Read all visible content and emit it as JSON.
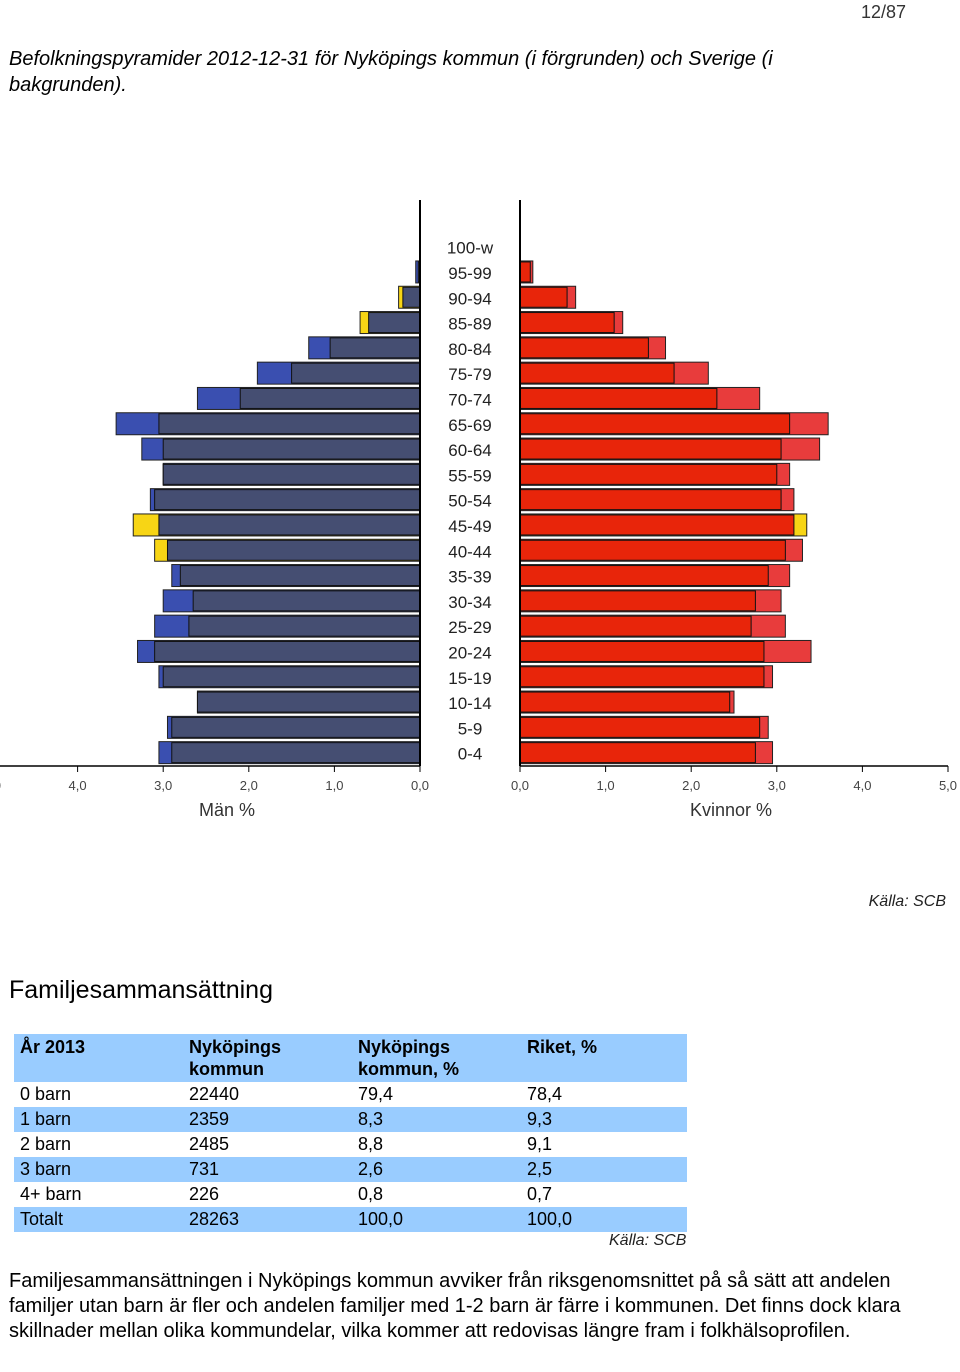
{
  "page_number": "12/87",
  "intro_text": "Befolkningspyramider 2012-12-31 för Nyköpings kommun (i förgrunden) och Sverige (i bakgrunden).",
  "chart_source": "Källa: SCB",
  "colors": {
    "men_kommun": "#454e72",
    "men_riket": "#3a4fb0",
    "women_kommun": "#e8250a",
    "women_riket": "#e83c3c",
    "kommun_larger": "#f7d515",
    "table_shade": "#99ccff"
  },
  "chart_data": {
    "type": "bar",
    "orientation": "horizontal-pyramid",
    "categories": [
      "100-w",
      "95-99",
      "90-94",
      "85-89",
      "80-84",
      "75-79",
      "70-74",
      "65-69",
      "60-64",
      "55-59",
      "50-54",
      "45-49",
      "40-44",
      "35-39",
      "30-34",
      "25-29",
      "20-24",
      "15-19",
      "10-14",
      "5-9",
      "0-4"
    ],
    "series": [
      {
        "side": "men",
        "layer": "kommun",
        "values": [
          0.0,
          0.02,
          0.25,
          0.7,
          1.05,
          1.5,
          2.1,
          3.05,
          3.0,
          3.0,
          3.1,
          3.35,
          3.1,
          2.8,
          2.65,
          2.7,
          3.1,
          3.0,
          2.6,
          2.9,
          2.9
        ]
      },
      {
        "side": "men",
        "layer": "riket",
        "values": [
          0.0,
          0.05,
          0.2,
          0.6,
          1.3,
          1.9,
          2.6,
          3.55,
          3.25,
          3.0,
          3.15,
          3.05,
          2.95,
          2.9,
          3.0,
          3.1,
          3.3,
          3.05,
          2.6,
          2.95,
          3.05
        ]
      },
      {
        "side": "women",
        "layer": "kommun",
        "values": [
          0.0,
          0.12,
          0.55,
          1.1,
          1.5,
          1.8,
          2.3,
          3.15,
          3.05,
          3.0,
          3.05,
          3.35,
          3.1,
          2.9,
          2.75,
          2.7,
          2.85,
          2.85,
          2.45,
          2.8,
          2.75
        ]
      },
      {
        "side": "women",
        "layer": "riket",
        "values": [
          0.0,
          0.15,
          0.65,
          1.2,
          1.7,
          2.2,
          2.8,
          3.6,
          3.5,
          3.15,
          3.2,
          3.2,
          3.3,
          3.15,
          3.05,
          3.1,
          3.4,
          2.95,
          2.5,
          2.9,
          2.95
        ]
      }
    ],
    "x_ticks": [
      "5,0",
      "4,0",
      "3,0",
      "2,0",
      "1,0",
      "0,0"
    ],
    "xlim": [
      0,
      5
    ],
    "xlabel_left": "Män %",
    "xlabel_right": "Kvinnor %"
  },
  "family_section": {
    "title": "Familjesammansättning",
    "headers": [
      "År 2013",
      "Nyköpings kommun",
      "Nyköpings kommun, %",
      "Riket, %"
    ],
    "rows": [
      [
        "0 barn",
        "22440",
        "79,4",
        "78,4"
      ],
      [
        "1 barn",
        "2359",
        "8,3",
        "9,3"
      ],
      [
        "2 barn",
        "2485",
        "8,8",
        "9,1"
      ],
      [
        "3 barn",
        "731",
        "2,6",
        "2,5"
      ],
      [
        "4+ barn",
        "226",
        "0,8",
        "0,7"
      ],
      [
        "Totalt",
        "28263",
        "100,0",
        "100,0"
      ]
    ],
    "source": "Källa: SCB",
    "paragraph": "Familjesammansättningen i Nyköpings kommun avviker från riksgenomsnittet på så sätt att andelen familjer utan barn är fler och andelen familjer med 1-2 barn är färre i kommunen. Det finns dock klara skillnader mellan olika kommundelar, vilka kommer att redovisas längre fram i folkhälsoprofilen."
  }
}
